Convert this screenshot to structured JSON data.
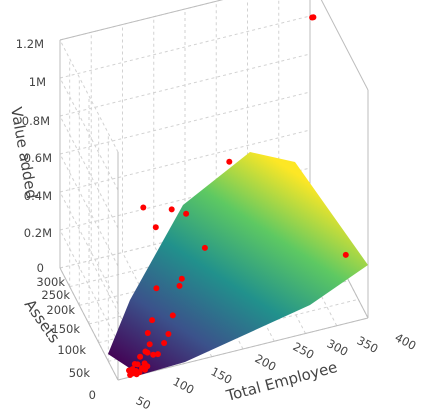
{
  "chart_data": {
    "type": "scatter3d_with_surface",
    "colorscale": "viridis",
    "marker_color": "#ff0000",
    "surface_colors": {
      "low": "#440154",
      "mid": "#21918c",
      "high": "#fde725"
    },
    "axes": {
      "x": {
        "label": "Total Employee",
        "ticks": [
          "50",
          "100",
          "150",
          "200",
          "250",
          "300",
          "350",
          "400"
        ]
      },
      "y": {
        "label": "Assets",
        "ticks": [
          "0",
          "50k",
          "100k",
          "150k",
          "200k",
          "250k",
          "300k"
        ]
      },
      "z": {
        "label": "Value added",
        "ticks": [
          "0",
          "0.2M",
          "0.4M",
          "0.6M",
          "0.8M",
          "1M",
          "1.2M"
        ]
      }
    },
    "grid": true,
    "points": [
      {
        "x": 360,
        "y": 160000,
        "z": 1300000
      },
      {
        "x": 390,
        "y": 250000,
        "z": 1100000
      },
      {
        "x": 380,
        "y": 50000,
        "z": 250000
      },
      {
        "x": 240,
        "y": 200000,
        "z": 560000
      },
      {
        "x": 90,
        "y": 160000,
        "z": 520000
      },
      {
        "x": 140,
        "y": 175000,
        "z": 440000
      },
      {
        "x": 160,
        "y": 165000,
        "z": 420000
      },
      {
        "x": 110,
        "y": 160000,
        "z": 400000
      },
      {
        "x": 170,
        "y": 100000,
        "z": 360000
      },
      {
        "x": 130,
        "y": 90000,
        "z": 250000
      },
      {
        "x": 80,
        "y": 60000,
        "z": 300000
      },
      {
        "x": 120,
        "y": 70000,
        "z": 260000
      },
      {
        "x": 100,
        "y": 40000,
        "z": 180000
      },
      {
        "x": 70,
        "y": 50000,
        "z": 160000
      },
      {
        "x": 60,
        "y": 40000,
        "z": 120000
      },
      {
        "x": 90,
        "y": 30000,
        "z": 110000
      },
      {
        "x": 80,
        "y": 20000,
        "z": 90000
      },
      {
        "x": 60,
        "y": 30000,
        "z": 80000
      },
      {
        "x": 50,
        "y": 20000,
        "z": 70000
      },
      {
        "x": 40,
        "y": 15000,
        "z": 60000
      },
      {
        "x": 55,
        "y": 25000,
        "z": 50000
      },
      {
        "x": 30,
        "y": 10000,
        "z": 40000
      },
      {
        "x": 45,
        "y": 8000,
        "z": 35000
      },
      {
        "x": 35,
        "y": 12000,
        "z": 30000
      },
      {
        "x": 25,
        "y": 6000,
        "z": 25000
      },
      {
        "x": 40,
        "y": 5000,
        "z": 20000
      },
      {
        "x": 20,
        "y": 8000,
        "z": 18000
      },
      {
        "x": 30,
        "y": 4000,
        "z": 15000
      },
      {
        "x": 50,
        "y": 10000,
        "z": 12000
      },
      {
        "x": 25,
        "y": 3000,
        "z": 10000
      },
      {
        "x": 35,
        "y": 2000,
        "z": 8000
      },
      {
        "x": 20,
        "y": 2000,
        "z": 6000
      },
      {
        "x": 45,
        "y": 6000,
        "z": 5000
      },
      {
        "x": 30,
        "y": 1000,
        "z": 4000
      },
      {
        "x": 60,
        "y": 12000,
        "z": 60000
      },
      {
        "x": 70,
        "y": 20000,
        "z": 40000
      }
    ]
  }
}
